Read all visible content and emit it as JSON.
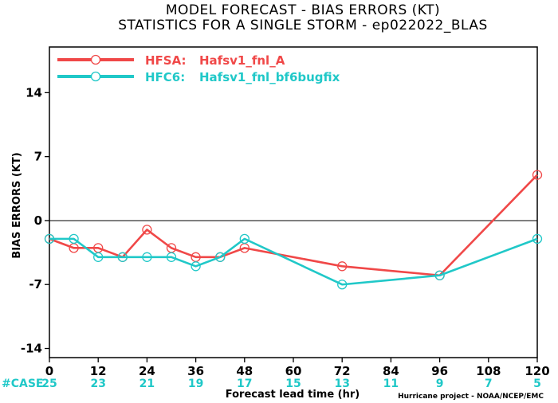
{
  "chart_data": {
    "type": "line",
    "title": "MODEL FORECAST - BIAS ERRORS (KT)",
    "subtitle": "STATISTICS FOR A SINGLE STORM - ep022022_BLAS",
    "xlabel": "Forecast lead time (hr)",
    "ylabel": "BIAS ERRORS (KT)",
    "xlim": [
      0,
      120
    ],
    "ylim": [
      -15,
      19
    ],
    "xticks": [
      0,
      12,
      24,
      36,
      48,
      60,
      72,
      84,
      96,
      108,
      120
    ],
    "yticks": [
      -14,
      -7,
      0,
      7,
      14
    ],
    "case_label": "#CASE",
    "case_x": [
      0,
      12,
      24,
      36,
      48,
      60,
      72,
      84,
      96,
      108,
      120
    ],
    "case_counts": [
      "25",
      "23",
      "21",
      "19",
      "17",
      "15",
      "13",
      "11",
      "9",
      "7",
      "5"
    ],
    "credit": "Hurricane project - NOAA/NCEP/EMC",
    "legend_position": "top-left",
    "series": [
      {
        "name": "HFSA:",
        "model": "Hafsv1_fnl_A",
        "color": "#f04848",
        "x": [
          0,
          6,
          12,
          18,
          24,
          30,
          36,
          42,
          48,
          72,
          96,
          120
        ],
        "y": [
          -2,
          -3,
          -3,
          -4,
          -1,
          -3,
          -4,
          -4,
          -3,
          -5,
          -6,
          5
        ]
      },
      {
        "name": "HFC6:",
        "model": "Hafsv1_fnl_bf6bugfix",
        "color": "#20c8c8",
        "x": [
          0,
          6,
          12,
          18,
          24,
          30,
          36,
          42,
          48,
          72,
          96,
          120
        ],
        "y": [
          -2,
          -2,
          -4,
          -4,
          -4,
          -4,
          -5,
          -4,
          -2,
          -7,
          -6,
          -2
        ]
      }
    ]
  }
}
